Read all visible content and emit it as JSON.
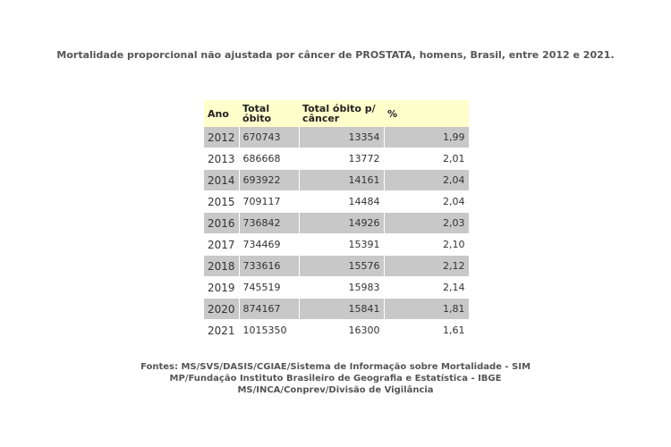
{
  "title": "Mortalidade proporcional não ajustada por câncer de PROSTATA, homens, Brasil, entre 2012 e 2021.",
  "table": {
    "headers": {
      "ano": "Ano",
      "total_obito": "Total óbito",
      "total_obito_cancer": "Total óbito p/ câncer",
      "percent": "%"
    },
    "rows": [
      {
        "ano": "2012",
        "total_obito": "670743",
        "total_obito_cancer": "13354",
        "percent": "1,99"
      },
      {
        "ano": "2013",
        "total_obito": "686668",
        "total_obito_cancer": "13772",
        "percent": "2,01"
      },
      {
        "ano": "2014",
        "total_obito": "693922",
        "total_obito_cancer": "14161",
        "percent": "2,04"
      },
      {
        "ano": "2015",
        "total_obito": "709117",
        "total_obito_cancer": "14484",
        "percent": "2,04"
      },
      {
        "ano": "2016",
        "total_obito": "736842",
        "total_obito_cancer": "14926",
        "percent": "2,03"
      },
      {
        "ano": "2017",
        "total_obito": "734469",
        "total_obito_cancer": "15391",
        "percent": "2,10"
      },
      {
        "ano": "2018",
        "total_obito": "733616",
        "total_obito_cancer": "15576",
        "percent": "2,12"
      },
      {
        "ano": "2019",
        "total_obito": "745519",
        "total_obito_cancer": "15983",
        "percent": "2,14"
      },
      {
        "ano": "2020",
        "total_obito": "874167",
        "total_obito_cancer": "15841",
        "percent": "1,81"
      },
      {
        "ano": "2021",
        "total_obito": "1015350",
        "total_obito_cancer": "16300",
        "percent": "1,61"
      }
    ]
  },
  "sources": [
    "Fontes: MS/SVS/DASIS/CGIAE/Sistema de Informação sobre Mortalidade - SIM",
    "MP/Fundação Instituto Brasileiro de Geografia e Estatística - IBGE",
    "MS/INCA/Conprev/Divisão de Vigilância"
  ],
  "colors": {
    "header_bg": "#ffffcc",
    "shaded_row_bg": "#c8c8c8",
    "text": "#555555"
  }
}
